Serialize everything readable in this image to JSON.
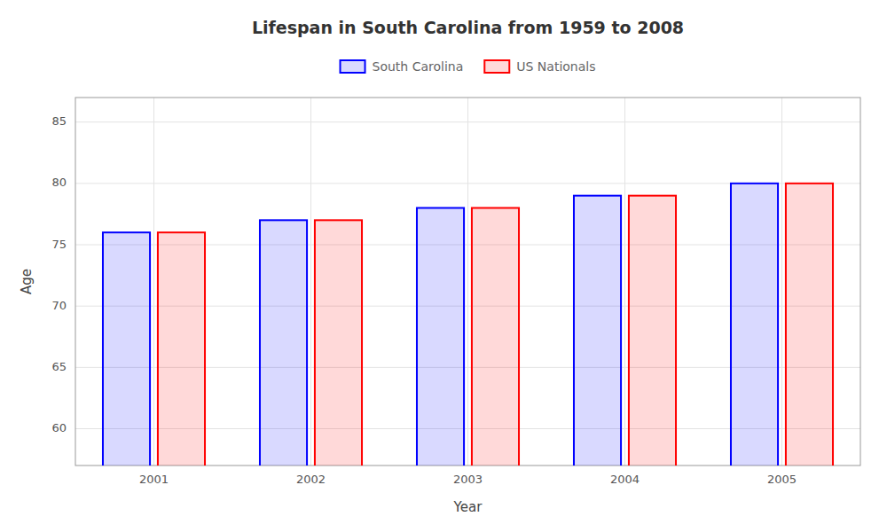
{
  "chart_data": {
    "type": "bar",
    "title": "Lifespan in South Carolina from 1959 to 2008",
    "xlabel": "Year",
    "ylabel": "Age",
    "categories": [
      "2001",
      "2002",
      "2003",
      "2004",
      "2005"
    ],
    "series": [
      {
        "name": "South Carolina",
        "color": "#0000ff",
        "values": [
          76,
          77,
          78,
          79,
          80
        ]
      },
      {
        "name": "US Nationals",
        "color": "#ff0000",
        "values": [
          76,
          77,
          78,
          79,
          80
        ]
      }
    ],
    "ylim": [
      57,
      87
    ],
    "yticks": [
      60,
      65,
      70,
      75,
      80,
      85
    ],
    "grid": true,
    "legend": "top"
  }
}
